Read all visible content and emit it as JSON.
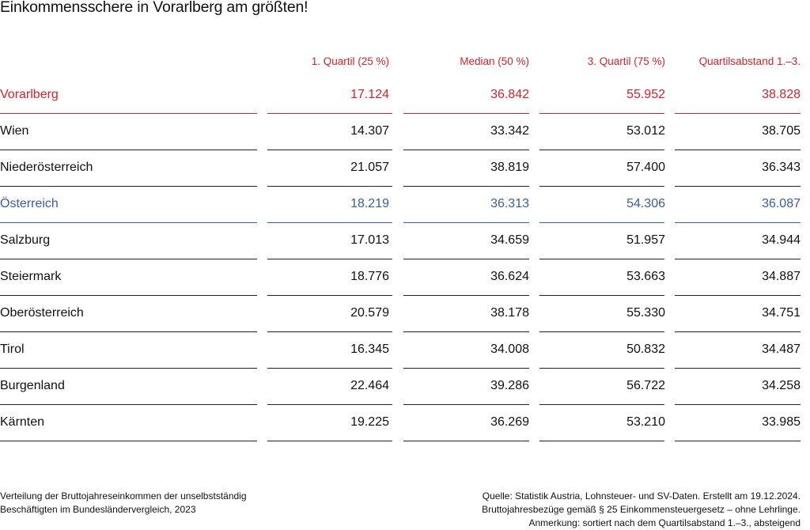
{
  "title": "Einkommensschere in Vorarlberg am größten!",
  "colors": {
    "highlight_red": "#d9222a",
    "highlight_blue": "#3a5ba6",
    "text": "#111111"
  },
  "chart_data": {
    "type": "table",
    "title": "Einkommensschere in Vorarlberg am größten!",
    "columns": [
      "1. Quartil (25 %)",
      "Median (50 %)",
      "3. Quartil (75 %)",
      "Quartilsabstand 1.–3."
    ],
    "rows": [
      {
        "name": "Vorarlberg",
        "style": "red",
        "values": [
          "17.124",
          "36.842",
          "55.952",
          "38.828"
        ]
      },
      {
        "name": "Wien",
        "style": "normal",
        "values": [
          "14.307",
          "33.342",
          "53.012",
          "38.705"
        ]
      },
      {
        "name": "Niederösterreich",
        "style": "normal",
        "values": [
          "21.057",
          "38.819",
          "57.400",
          "36.343"
        ]
      },
      {
        "name": "Österreich",
        "style": "blue",
        "values": [
          "18.219",
          "36.313",
          "54.306",
          "36.087"
        ]
      },
      {
        "name": "Salzburg",
        "style": "normal",
        "values": [
          "17.013",
          "34.659",
          "51.957",
          "34.944"
        ]
      },
      {
        "name": "Steiermark",
        "style": "normal",
        "values": [
          "18.776",
          "36.624",
          "53.663",
          "34.887"
        ]
      },
      {
        "name": "Oberösterreich",
        "style": "normal",
        "values": [
          "20.579",
          "38.178",
          "55.330",
          "34.751"
        ]
      },
      {
        "name": "Tirol",
        "style": "normal",
        "values": [
          "16.345",
          "34.008",
          "50.832",
          "34.487"
        ]
      },
      {
        "name": "Burgenland",
        "style": "normal",
        "values": [
          "22.464",
          "39.286",
          "56.722",
          "34.258"
        ]
      },
      {
        "name": "Kärnten",
        "style": "normal",
        "values": [
          "19.225",
          "36.269",
          "53.210",
          "33.985"
        ]
      }
    ]
  },
  "footer": {
    "left": [
      "Verteilung der Bruttojahreseinkommen der unselbstständig",
      "Beschäftigten im Bundesländervergleich, 2023"
    ],
    "right": [
      "Quelle: Statistik Austria, Lohnsteuer- und SV-Daten. Erstellt am 19.12.2024.",
      "Bruttojahresbezüge gemäß § 25 Einkommensteuergesetz – ohne Lehrlinge.",
      "Anmerkung: sortiert nach dem Quartilsabstand 1.–3., absteigend"
    ]
  }
}
